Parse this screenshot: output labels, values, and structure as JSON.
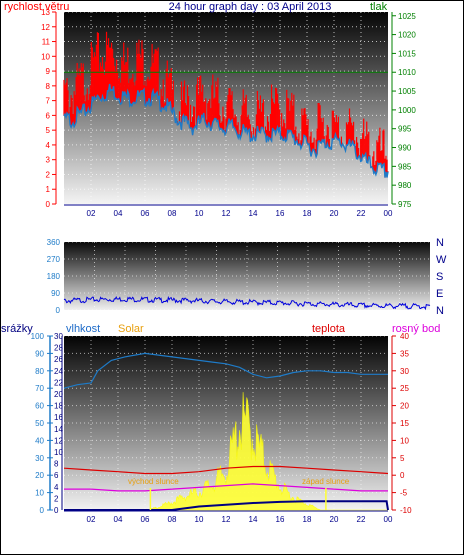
{
  "colors": {
    "wind": "#ff0000",
    "gust_edge": "#1e7bc8",
    "pressure": "#008000",
    "direction": "#0000dd",
    "humidity": "#1e7bc8",
    "solar": "#ffff33",
    "temperature": "#dd0000",
    "dewpoint": "#dd00dd",
    "rain": "#000080",
    "title": "#00008b",
    "label_blue": "#1e6bc8",
    "label_solar": "#e8a010",
    "axis_rain": "#1e7bc8",
    "axis_humidity": "#000080",
    "axis_temp": "#dd0000"
  },
  "labels": {
    "title": "24 hour graph day : 03 April 2013",
    "wind": "rychlost větru",
    "pressure": "tlak",
    "rain": "srážky",
    "humidity": "vlhkost",
    "solar": "Solar",
    "temperature": "teplota",
    "dewpoint": "rosný bod",
    "sunrise": "východ slunce",
    "sunset": "západ slunce"
  },
  "chart_data": [
    {
      "type": "line",
      "title": "24 hour graph day : 03 April 2013",
      "x_ticks": [
        "02",
        "04",
        "06",
        "08",
        "10",
        "12",
        "14",
        "16",
        "18",
        "20",
        "22",
        "00"
      ],
      "x_hours": [
        0,
        24
      ],
      "left_axis": {
        "label": "rychlost větru",
        "ticks": [
          0,
          1,
          2,
          3,
          4,
          5,
          6,
          7,
          8,
          9,
          10,
          11,
          12,
          13
        ],
        "ylim": [
          0,
          13
        ]
      },
      "right_axis": {
        "label": "tlak",
        "ticks": [
          975,
          980,
          985,
          990,
          995,
          1000,
          1005,
          1010,
          1015,
          1020,
          1025
        ],
        "ylim": [
          975,
          1026
        ]
      },
      "grid": true,
      "series": [
        {
          "name": "rychlost větru",
          "kind": "wind_max",
          "x": [
            0.5,
            1.5,
            2.5,
            3.5,
            4.5,
            5.5,
            6.5,
            7.5,
            8.5,
            9.5,
            10.5,
            11.5,
            12.5,
            13.5,
            14.5,
            15.5,
            16.5,
            17.5,
            18.5,
            19.5,
            20.5,
            21.5,
            22.5,
            23.5
          ],
          "values": [
            8,
            9,
            10.5,
            11,
            10,
            10.5,
            10,
            9,
            7,
            7.5,
            8,
            7.5,
            7,
            6.5,
            6.5,
            7,
            7,
            6,
            5.5,
            6,
            5.5,
            5.5,
            4.5,
            4
          ]
        },
        {
          "name": "",
          "kind": "wind_avg",
          "x": [
            0.5,
            1.5,
            2.5,
            3.5,
            4.5,
            5.5,
            6.5,
            7.5,
            8.5,
            9.5,
            10.5,
            11.5,
            12.5,
            13.5,
            14.5,
            15.5,
            16.5,
            17.5,
            18.5,
            19.5,
            20.5,
            21.5,
            22.5,
            23.5
          ],
          "values": [
            6,
            6.5,
            7.5,
            8,
            7.5,
            7.5,
            7.5,
            7,
            6,
            5.5,
            6,
            5.5,
            5.5,
            5,
            5,
            5,
            5,
            4.5,
            4,
            4.5,
            4.5,
            4,
            3,
            2.5
          ]
        },
        {
          "name": "tlak",
          "kind": "pressure",
          "x": [
            0,
            2,
            4,
            6,
            8,
            10,
            12,
            14,
            16,
            18,
            20,
            22,
            24
          ],
          "values": [
            1010,
            1010,
            1010,
            1010,
            1010,
            1010,
            1010,
            1010,
            1010,
            1010,
            1010,
            1010,
            1010
          ]
        }
      ]
    },
    {
      "type": "scatter",
      "x_hours": [
        0,
        24
      ],
      "left_axis": {
        "ticks": [
          0,
          90,
          180,
          270,
          360
        ],
        "ylim": [
          0,
          360
        ]
      },
      "right_labels": [
        "N",
        "W",
        "S",
        "E",
        "N"
      ],
      "grid": true,
      "series": [
        {
          "name": "",
          "kind": "direction",
          "x": [
            0,
            2,
            4,
            6,
            8,
            10,
            12,
            14,
            16,
            18,
            20,
            22,
            24
          ],
          "values": [
            55,
            62,
            65,
            60,
            58,
            52,
            48,
            45,
            40,
            35,
            30,
            28,
            25
          ]
        }
      ]
    },
    {
      "type": "line",
      "x_ticks": [
        "02",
        "04",
        "06",
        "08",
        "10",
        "12",
        "14",
        "16",
        "18",
        "20",
        "22",
        "00"
      ],
      "x_hours": [
        0,
        24
      ],
      "rain_axis": {
        "label": "srážky",
        "ticks": [
          0,
          10,
          20,
          30,
          40,
          50,
          60,
          70,
          80,
          90,
          100
        ],
        "ylim": [
          0,
          100
        ]
      },
      "humidity_axis": {
        "label": "vlhkost",
        "ticks": [
          0,
          2,
          4,
          6,
          8,
          10,
          12,
          14,
          16,
          18,
          20,
          22,
          24,
          26,
          28,
          30
        ],
        "ylim": [
          0,
          30
        ]
      },
      "temp_axis": {
        "label": "teplota",
        "ticks": [
          -10,
          -5,
          0,
          5,
          10,
          15,
          20,
          25,
          30,
          35,
          40
        ],
        "ylim": [
          -10,
          40
        ]
      },
      "grid": true,
      "annotations": [
        {
          "text": "východ slunce",
          "x": 6.4
        },
        {
          "text": "západ slunce",
          "x": 19.4
        }
      ],
      "series": [
        {
          "name": "vlhkost",
          "kind": "humidity",
          "axis": "rain",
          "x": [
            0,
            1,
            2,
            2.5,
            3.5,
            4.5,
            6,
            7,
            8,
            9,
            10,
            11,
            12,
            13,
            14,
            15,
            16,
            17,
            18,
            19,
            20,
            21,
            22,
            23,
            24
          ],
          "values": [
            70,
            72,
            73,
            80,
            86,
            88,
            90,
            89,
            88,
            87,
            86,
            85,
            84,
            82,
            78,
            76,
            77,
            79,
            80,
            80,
            79,
            79,
            78,
            78,
            78
          ]
        },
        {
          "name": "Solar",
          "kind": "solar",
          "axis": "rain",
          "x": [
            0,
            6.2,
            7,
            8,
            9,
            10,
            11,
            12,
            12.5,
            13,
            13.5,
            14,
            15,
            16,
            17,
            18,
            19,
            20,
            24
          ],
          "values": [
            0,
            0,
            2,
            5,
            9,
            12,
            17,
            25,
            40,
            55,
            56,
            48,
            30,
            15,
            8,
            4,
            0,
            0,
            0
          ]
        },
        {
          "name": "teplota",
          "kind": "temperature",
          "axis": "temp",
          "x": [
            0,
            2,
            4,
            6,
            8,
            10,
            12,
            14,
            16,
            18,
            20,
            22,
            24
          ],
          "values": [
            2,
            1.5,
            1,
            0.5,
            0.5,
            1,
            2,
            2.5,
            2.5,
            2,
            1.5,
            1,
            0.5
          ]
        },
        {
          "name": "rosný bod",
          "kind": "dewpoint",
          "axis": "temp",
          "x": [
            0,
            2,
            4,
            6,
            8,
            10,
            12,
            14,
            16,
            18,
            20,
            22,
            24
          ],
          "values": [
            -4,
            -4,
            -4.5,
            -4.5,
            -4,
            -3.5,
            -3,
            -2.5,
            -3,
            -3.5,
            -4,
            -4.5,
            -4.5
          ]
        },
        {
          "name": "srážky",
          "kind": "rain",
          "axis": "humidity",
          "x": [
            0,
            8,
            9,
            10,
            12,
            14,
            16,
            18,
            20,
            22,
            23.9,
            24
          ],
          "values": [
            0,
            0,
            0.3,
            0.6,
            0.9,
            1.2,
            1.4,
            1.5,
            1.5,
            1.5,
            1.5,
            0
          ]
        }
      ]
    }
  ]
}
